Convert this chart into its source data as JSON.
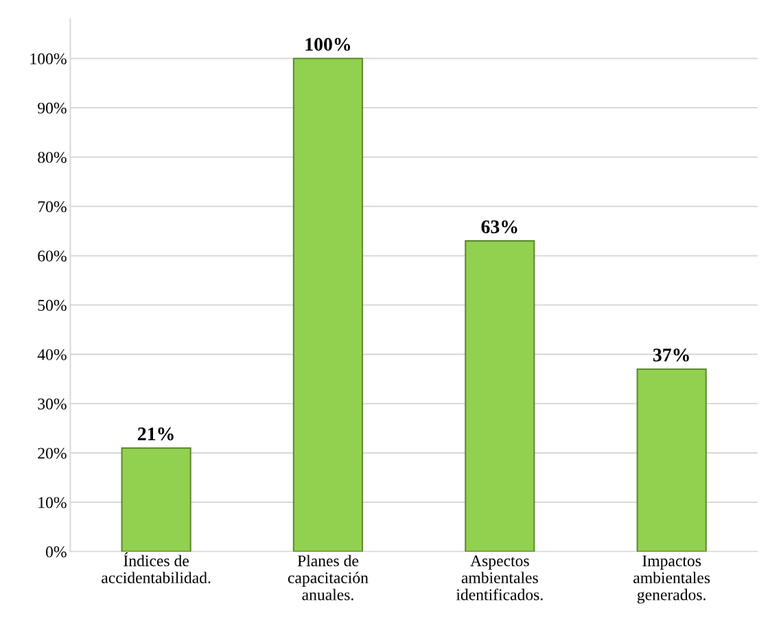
{
  "chart_data": {
    "type": "bar",
    "categories": [
      "Índices de\naccidentabilidad.",
      "Planes de\ncapacitación\nanuales.",
      "Aspectos\nambientales\nidentificados.",
      "Impactos\nambientales\ngenerados."
    ],
    "values": [
      21,
      100,
      63,
      37
    ],
    "value_labels": [
      "21%",
      "100%",
      "63%",
      "37%"
    ],
    "color": "#92d050",
    "ylim": [
      0,
      108
    ],
    "yticks": [
      {
        "value": 0,
        "label": "0%"
      },
      {
        "value": 10,
        "label": "10%"
      },
      {
        "value": 20,
        "label": "20%"
      },
      {
        "value": 30,
        "label": "30%"
      },
      {
        "value": 40,
        "label": "40%"
      },
      {
        "value": 50,
        "label": "50%"
      },
      {
        "value": 60,
        "label": "60%"
      },
      {
        "value": 70,
        "label": "70%"
      },
      {
        "value": 80,
        "label": "80%"
      },
      {
        "value": 90,
        "label": "90%"
      },
      {
        "value": 100,
        "label": "100%"
      }
    ],
    "grid": "y"
  }
}
